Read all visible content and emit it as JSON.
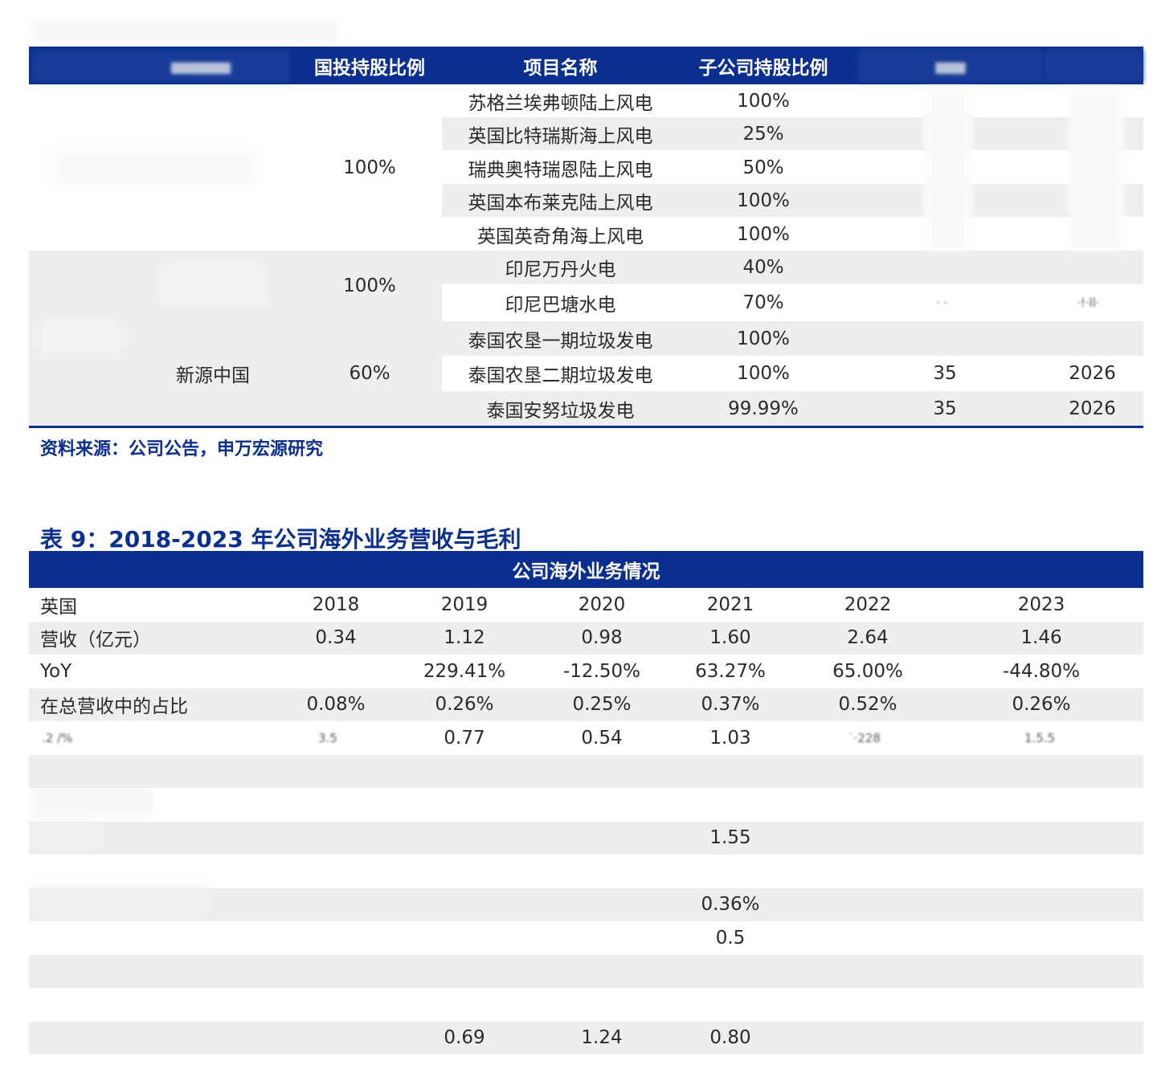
{
  "table1": {
    "header": {
      "col_stake": "国投持股比例",
      "col_project": "项目名称",
      "col_sub_stake": "子公司持股比例"
    },
    "groups": [
      {
        "company": "",
        "stake": "100%"
      },
      {
        "company": "",
        "stake": "100%"
      },
      {
        "company": "新源中国",
        "stake": "60%"
      }
    ],
    "rows": [
      {
        "project": "苏格兰埃弗顿陆上风电",
        "sub_stake": "100%",
        "capacity": "",
        "expiry": ""
      },
      {
        "project": "英国比特瑞斯海上风电",
        "sub_stake": "25%",
        "capacity": "",
        "expiry": ""
      },
      {
        "project": "瑞典奥特瑞恩陆上风电",
        "sub_stake": "50%",
        "capacity": "",
        "expiry": ""
      },
      {
        "project": "英国本布莱克陆上风电",
        "sub_stake": "100%",
        "capacity": "",
        "expiry": ""
      },
      {
        "project": "英国英奇角海上风电",
        "sub_stake": "100%",
        "capacity": "",
        "expiry": ""
      },
      {
        "project": "印尼万丹火电",
        "sub_stake": "40%",
        "capacity": "",
        "expiry": ""
      },
      {
        "project": "印尼巴塘水电",
        "sub_stake": "70%",
        "capacity": "",
        "expiry": ""
      },
      {
        "project": "泰国农垦一期垃圾发电",
        "sub_stake": "100%",
        "capacity": "",
        "expiry": ""
      },
      {
        "project": "泰国农垦二期垃圾发电",
        "sub_stake": "100%",
        "capacity": "35",
        "expiry": "2026"
      },
      {
        "project": "泰国安努垃圾发电",
        "sub_stake": "99.99%",
        "capacity": "35",
        "expiry": "2026"
      }
    ],
    "source": "资料来源：公司公告，申万宏源研究"
  },
  "table2": {
    "title": "表 9：2018-2023 年公司海外业务营收与毛利",
    "header": "公司海外业务情况",
    "rows": [
      {
        "label": "英国",
        "values": [
          "2018",
          "2019",
          "2020",
          "2021",
          "2022",
          "2023"
        ]
      },
      {
        "label": "营收（亿元）",
        "values": [
          "0.34",
          "1.12",
          "0.98",
          "1.60",
          "2.64",
          "1.46"
        ]
      },
      {
        "label": "YoY",
        "values": [
          "",
          "229.41%",
          "-12.50%",
          "63.27%",
          "65.00%",
          "-44.80%"
        ]
      },
      {
        "label": "在总营收中的占比",
        "values": [
          "0.08%",
          "0.26%",
          "0.25%",
          "0.37%",
          "0.52%",
          "0.26%"
        ]
      },
      {
        "label": "",
        "values": [
          "",
          "0.77",
          "0.54",
          "1.03",
          "",
          ""
        ]
      },
      {
        "label": "",
        "values": [
          "",
          "",
          "",
          "",
          "",
          ""
        ]
      },
      {
        "label": "",
        "values": [
          "",
          "",
          "",
          "",
          "",
          ""
        ]
      },
      {
        "label": "",
        "values": [
          "",
          "",
          "",
          "1.55",
          "",
          ""
        ]
      },
      {
        "label": "",
        "values": [
          "",
          "",
          "",
          "",
          "",
          ""
        ]
      },
      {
        "label": "",
        "values": [
          "",
          "",
          "",
          "0.36%",
          "",
          ""
        ]
      },
      {
        "label": "",
        "values": [
          "",
          "",
          "",
          "0.5",
          "",
          ""
        ]
      },
      {
        "label": "",
        "values": [
          "",
          "",
          "",
          "",
          "",
          ""
        ]
      },
      {
        "label": "",
        "values": [
          "",
          "",
          "",
          "",
          "",
          ""
        ]
      },
      {
        "label": "",
        "values": [
          "",
          "0.69",
          "1.24",
          "0.80",
          "",
          ""
        ]
      }
    ]
  }
}
